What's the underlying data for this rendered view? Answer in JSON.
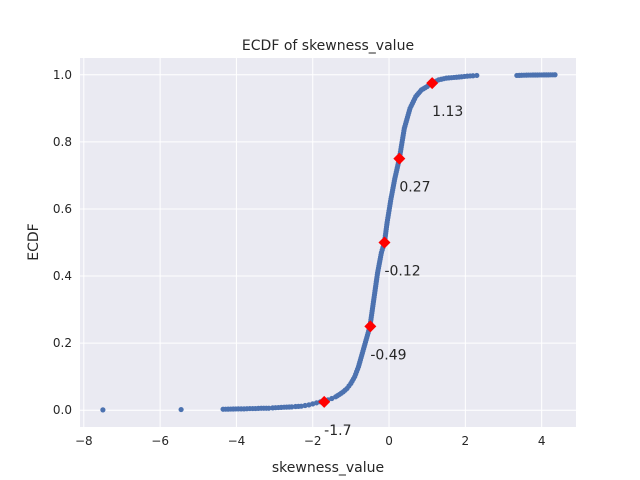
{
  "chart_data": {
    "type": "scatter",
    "title": "ECDF of skewness_value",
    "xlabel": "skewness_value",
    "ylabel": "ECDF",
    "xlim": [
      -8.1,
      4.9
    ],
    "ylim": [
      -0.05,
      1.05
    ],
    "xticks": [
      -8,
      -6,
      -4,
      -2,
      0,
      2,
      4
    ],
    "yticks": [
      0.0,
      0.2,
      0.4,
      0.6,
      0.8,
      1.0
    ],
    "xtick_labels": [
      "−8",
      "−6",
      "−4",
      "−2",
      "0",
      "2",
      "4"
    ],
    "ytick_labels": [
      "0.0",
      "0.2",
      "0.4",
      "0.6",
      "0.8",
      "1.0"
    ],
    "grid": true,
    "colors": {
      "points": "#4c72b0",
      "markers": "#ff0000",
      "background": "#eaeaf2",
      "grid": "#ffffff"
    },
    "series": [
      {
        "marker": "point",
        "x": [
          -7.5,
          -5.45,
          -4.35,
          -3.95,
          -3.8,
          -3.65,
          -3.5,
          -3.35,
          -3.15,
          -3.05,
          -2.9,
          -2.75,
          -2.55,
          -2.45,
          -2.3,
          -2.2,
          -2.1,
          -2.0,
          -1.9,
          -1.8,
          -1.7,
          -1.6,
          -1.5,
          -1.4,
          -1.3,
          -1.2,
          -1.1,
          -1.0,
          -0.9,
          -0.8,
          -0.7,
          -0.6,
          -0.5,
          -0.4,
          -0.3,
          -0.2,
          -0.12,
          -0.05,
          0.05,
          0.15,
          0.27,
          0.4,
          0.55,
          0.7,
          0.85,
          1.0,
          1.13,
          1.3,
          1.5,
          1.7,
          1.9,
          2.05,
          2.2,
          2.3,
          3.35,
          3.6,
          4.35
        ],
        "y": [
          0.001,
          0.002,
          0.003,
          0.004,
          0.004,
          0.005,
          0.005,
          0.006,
          0.006,
          0.007,
          0.008,
          0.009,
          0.01,
          0.011,
          0.012,
          0.014,
          0.016,
          0.019,
          0.022,
          0.025,
          0.028,
          0.031,
          0.035,
          0.04,
          0.047,
          0.055,
          0.065,
          0.08,
          0.1,
          0.13,
          0.17,
          0.21,
          0.25,
          0.33,
          0.41,
          0.47,
          0.5,
          0.56,
          0.63,
          0.69,
          0.75,
          0.84,
          0.9,
          0.935,
          0.955,
          0.965,
          0.975,
          0.985,
          0.99,
          0.992,
          0.994,
          0.996,
          0.997,
          0.998,
          0.998,
          0.999,
          1.0
        ]
      },
      {
        "marker": "diamond",
        "x": [
          -1.7,
          -0.49,
          -0.12,
          0.27,
          1.13
        ],
        "y": [
          0.025,
          0.25,
          0.5,
          0.75,
          0.975
        ],
        "labels": [
          "-1.7",
          "-0.49",
          "-0.12",
          "0.27",
          "1.13"
        ]
      }
    ]
  }
}
